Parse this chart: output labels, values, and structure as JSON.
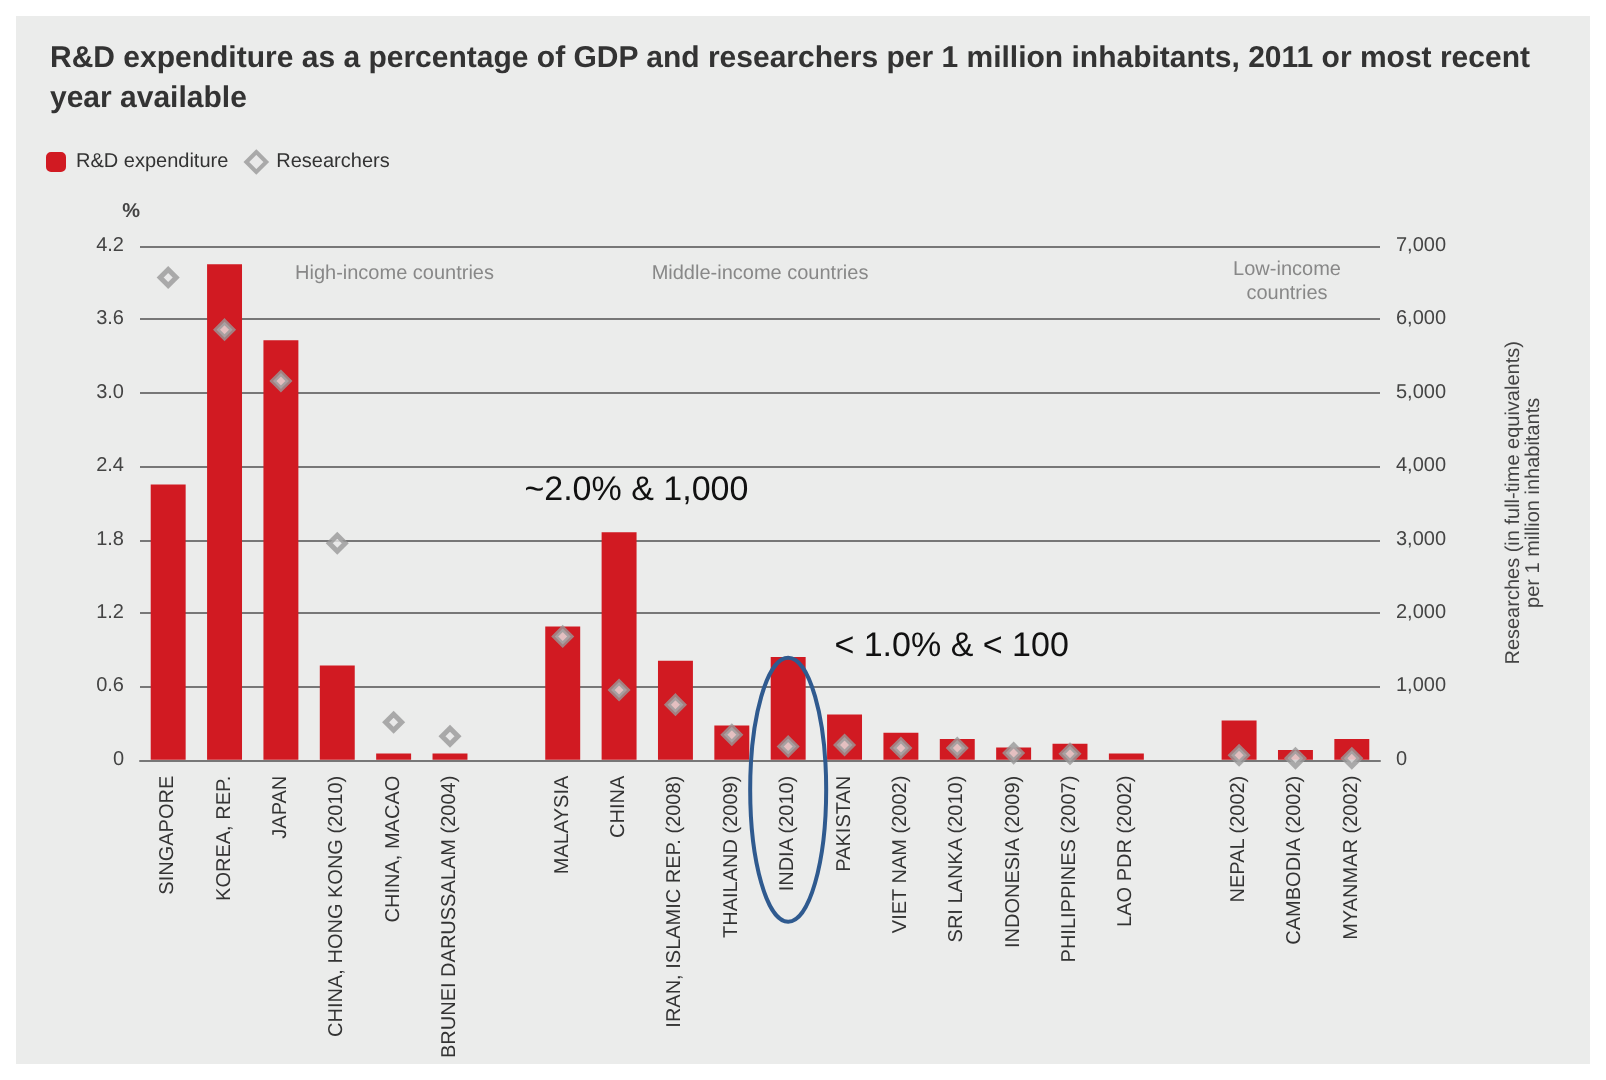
{
  "chart_data": {
    "type": "bar",
    "title": "R&D expenditure as a percentage of GDP and researchers per 1 million inhabitants, 2011 or most recent year available",
    "ylabel": "%",
    "y2label": "Researches (in full-time equivalents)\nper 1 million inhabitants",
    "categories": [
      "SINGAPORE",
      "KOREA, REP.",
      "JAPAN",
      "CHINA, HONG KONG (2010)",
      "CHINA, MACAO",
      "BRUNEI DARUSSALAM (2004)",
      null,
      "MALAYSIA",
      "CHINA",
      "IRAN, ISLAMIC REP. (2008)",
      "THAILAND (2009)",
      "INDIA (2010)",
      "PAKISTAN",
      "VIET NAM (2002)",
      "SRI LANKA (2010)",
      "INDONESIA (2009)",
      "PHILIPPINES (2007)",
      "LAO PDR (2002)",
      null,
      "NEPAL (2002)",
      "CAMBODIA (2002)",
      "MYANMAR (2002)"
    ],
    "series": [
      {
        "name": "R&D expenditure",
        "color": "#d11a22",
        "values": [
          2.25,
          4.05,
          3.43,
          0.77,
          0.05,
          0.05,
          null,
          1.09,
          1.86,
          0.81,
          0.28,
          0.84,
          0.37,
          0.22,
          0.17,
          0.1,
          0.13,
          0.05,
          null,
          0.32,
          0.08,
          0.17
        ]
      },
      {
        "name": "Researchers",
        "type": "scatter",
        "axis": "y2",
        "color": "#999999",
        "marker": "diamond",
        "values": [
          6570,
          5860,
          5160,
          2950,
          510,
          320,
          null,
          1680,
          950,
          750,
          340,
          180,
          200,
          160,
          160,
          90,
          80,
          null,
          null,
          60,
          20,
          20
        ]
      }
    ],
    "ylim": [
      0,
      4.2
    ],
    "yticks": [
      0,
      0.6,
      1.2,
      1.8,
      2.4,
      {
        "value": 3,
        "label": "3.0"
      },
      3.6,
      4.2
    ],
    "y2lim": [
      0,
      7000
    ],
    "y2ticks": [
      {
        "value": 0,
        "label": "0"
      },
      {
        "value": 1000,
        "label": "1,000"
      },
      {
        "value": 2000,
        "label": "2,000"
      },
      {
        "value": 3000,
        "label": "3,000"
      },
      {
        "value": 4000,
        "label": "4,000"
      },
      {
        "value": 5000,
        "label": "5,000"
      },
      {
        "value": 6000,
        "label": "6,000"
      },
      {
        "value": 7000,
        "label": "7,000"
      }
    ],
    "grid": "y",
    "legend": "top left",
    "annotations": [
      "High-income countries",
      "Middle-income countries",
      "Low-income\ncountries",
      "~2.0% & 1,000",
      "< 1.0% & < 100"
    ]
  }
}
